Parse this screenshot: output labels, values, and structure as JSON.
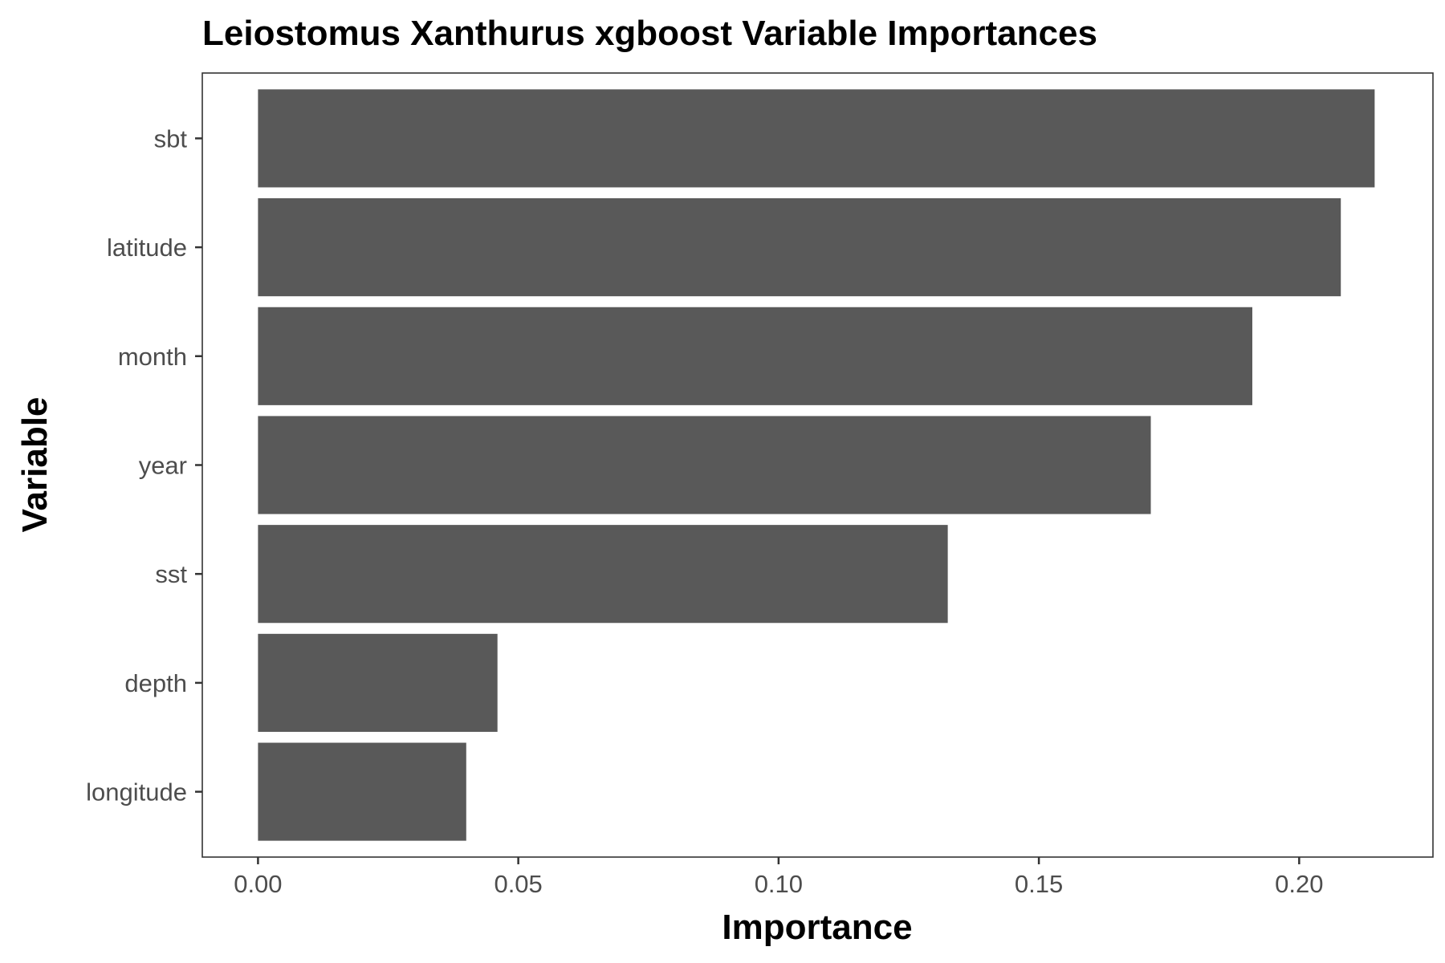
{
  "chart_data": {
    "type": "bar",
    "orientation": "horizontal",
    "title": "Leiostomus Xanthurus xgboost Variable Importances",
    "xlabel": "Importance",
    "ylabel": "Variable",
    "categories": [
      "sbt",
      "latitude",
      "month",
      "year",
      "sst",
      "depth",
      "longitude"
    ],
    "values": [
      0.2145,
      0.208,
      0.191,
      0.1715,
      0.1325,
      0.046,
      0.04
    ],
    "xlim": [
      -0.0107,
      0.2257
    ],
    "xticks": [
      0.0,
      0.05,
      0.1,
      0.15,
      0.2
    ],
    "xtick_labels": [
      "0.00",
      "0.05",
      "0.10",
      "0.15",
      "0.20"
    ],
    "bar_color": "#595959",
    "grid": false,
    "legend": "none"
  }
}
